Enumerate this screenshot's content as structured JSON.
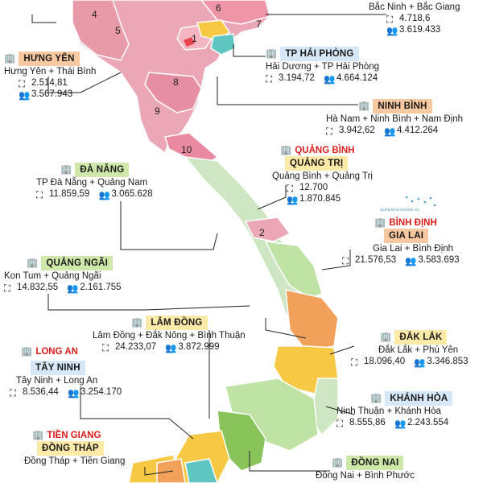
{
  "map": {
    "region_numbers": [
      "1",
      "2",
      "4",
      "5",
      "6",
      "7",
      "8",
      "9",
      "10"
    ],
    "labels": {
      "bac_ninh": {
        "merged": "Bắc Ninh + Bắc Giang",
        "area": "4.718,6",
        "population": "3.619.433"
      },
      "hung_yen": {
        "tag": "HƯNG YÊN",
        "merged": "Hưng Yên + Thái Bình",
        "area": "2.514,81",
        "population": "3.567.943"
      },
      "hai_phong": {
        "tag": "TP HẢI PHÒNG",
        "merged": "Hải Dương + TP Hải Phòng",
        "area": "3.194,72",
        "population": "4.664.124"
      },
      "ninh_binh": {
        "tag": "NINH BÌNH",
        "merged": "Hà Nam + Ninh Bình + Nam Định",
        "area": "3.942,62",
        "population": "4.412.264"
      },
      "quang_tri": {
        "tag_old": "QUẢNG BÌNH",
        "tag": "QUẢNG TRỊ",
        "merged": "Quảng Bình + Quảng Trị",
        "area": "12.700",
        "population": "1.870.845"
      },
      "da_nang": {
        "tag": "ĐÀ NẴNG",
        "merged": "TP Đà Nẵng + Quảng Nam",
        "area": "11.859,59",
        "population": "3.065.628"
      },
      "gia_lai": {
        "tag_old": "BÌNH ĐỊNH",
        "tag": "GIA LAI",
        "merged": "Gia Lai + Bình Định",
        "area": "21.576,53",
        "population": "3.583.693"
      },
      "quang_ngai": {
        "tag": "QUẢNG NGÃI",
        "merged": "Kon Tum + Quảng Ngãi",
        "area": "14.832,55",
        "population": "2.161.755"
      },
      "lam_dong": {
        "tag": "LÂM ĐỒNG",
        "merged": "Lâm Đồng + Đắk Nông + Bình Thuận",
        "area": "24.233,07",
        "population": "3.872.999"
      },
      "dak_lak": {
        "tag": "ĐẮK LẮK",
        "merged": "Đắk Lắk + Phú Yên",
        "area": "18.096,40",
        "population": "3.346.853"
      },
      "tay_ninh": {
        "tag_old": "LONG AN",
        "tag": "TÂY NINH",
        "merged": "Tây Ninh + Long An",
        "area": "8.536,44",
        "population": "3.254.170"
      },
      "khanh_hoa": {
        "tag": "KHÁNH HÒA",
        "merged": "Ninh Thuận + Khánh Hòa",
        "area": "8.555,86",
        "population": "2.243.554"
      },
      "dong_thap": {
        "tag_old": "TIỀN GIANG",
        "tag": "ĐỒNG THÁP",
        "merged": "Đồng Tháp + Tiền Giang"
      },
      "dong_nai": {
        "tag": "ĐỒNG NAI",
        "merged": "Đồng Nai + Bình Phước"
      }
    },
    "islands_note": "QUẦN ĐẢO HOÀNG SA",
    "colors": {
      "north_pink": "#eba7b6",
      "coast_green": "#cfe6c2",
      "central_green": "#bfe3a5",
      "orange": "#f2a15b",
      "yellow": "#f7c843",
      "south_green": "#88c45a",
      "teal": "#5fc5c0",
      "tag_green": "#cfe8a9",
      "tag_yellow": "#fde9a8",
      "tag_orange": "#f8c9a0",
      "tag_blue": "#d6e8f7"
    }
  }
}
